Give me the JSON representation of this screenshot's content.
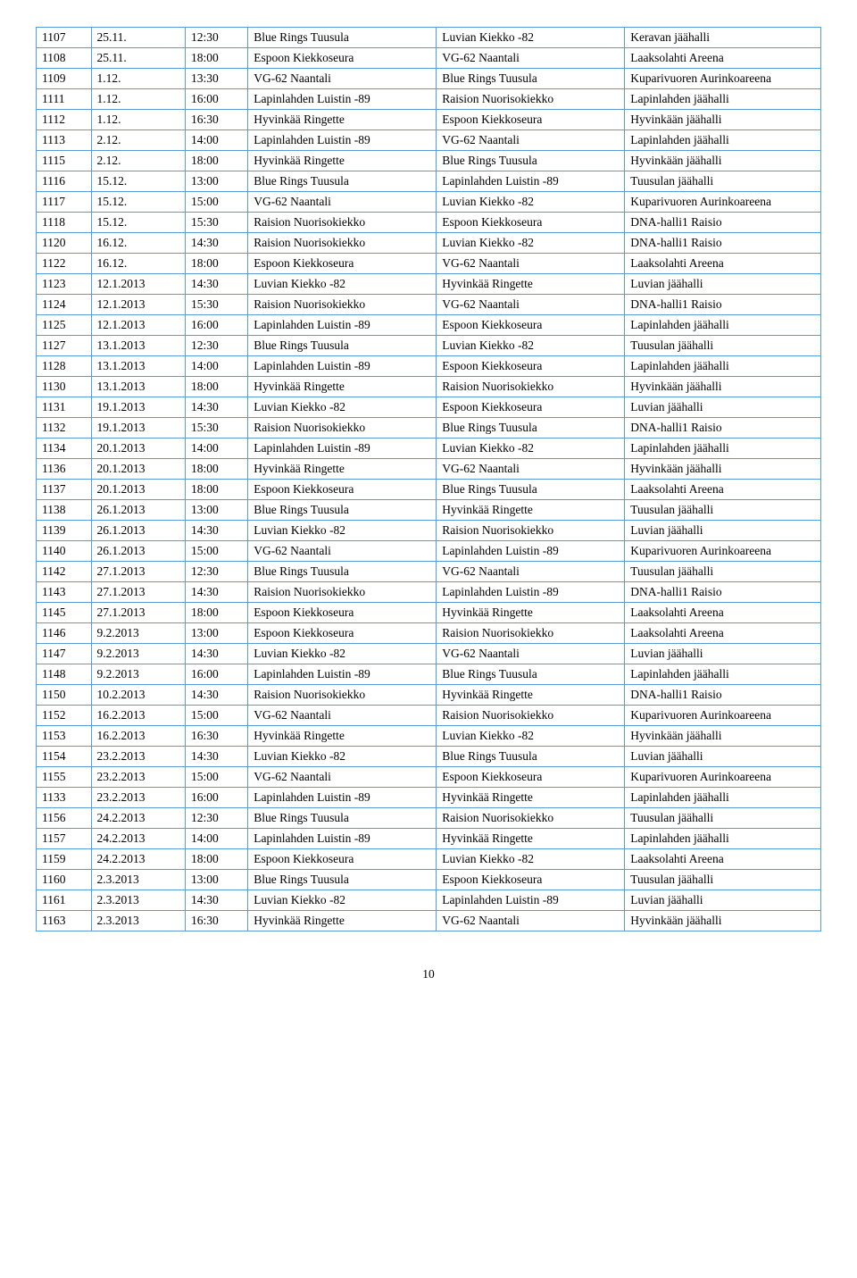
{
  "page_number": "10",
  "table": {
    "rows": [
      [
        "1107",
        "25.11.",
        "12:30",
        "Blue Rings Tuusula",
        "Luvian Kiekko -82",
        "Keravan jäähalli"
      ],
      [
        "1108",
        "25.11.",
        "18:00",
        "Espoon Kiekkoseura",
        "VG-62 Naantali",
        "Laaksolahti Areena"
      ],
      [
        "1109",
        "1.12.",
        "13:30",
        "VG-62 Naantali",
        "Blue Rings Tuusula",
        "Kuparivuoren Aurinkoareena"
      ],
      [
        "1111",
        "1.12.",
        "16:00",
        "Lapinlahden Luistin -89",
        "Raision Nuorisokiekko",
        "Lapinlahden jäähalli"
      ],
      [
        "1112",
        "1.12.",
        "16:30",
        "Hyvinkää Ringette",
        "Espoon Kiekkoseura",
        "Hyvinkään jäähalli"
      ],
      [
        "1113",
        "2.12.",
        "14:00",
        "Lapinlahden Luistin -89",
        "VG-62 Naantali",
        "Lapinlahden jäähalli"
      ],
      [
        "1115",
        "2.12.",
        "18:00",
        "Hyvinkää Ringette",
        "Blue Rings Tuusula",
        "Hyvinkään jäähalli"
      ],
      [
        "1116",
        "15.12.",
        "13:00",
        "Blue Rings Tuusula",
        "Lapinlahden Luistin -89",
        "Tuusulan jäähalli"
      ],
      [
        "1117",
        "15.12.",
        "15:00",
        "VG-62 Naantali",
        "Luvian Kiekko -82",
        "Kuparivuoren Aurinkoareena"
      ],
      [
        "1118",
        "15.12.",
        "15:30",
        "Raision Nuorisokiekko",
        "Espoon Kiekkoseura",
        "DNA-halli1 Raisio"
      ],
      [
        "1120",
        "16.12.",
        "14:30",
        "Raision Nuorisokiekko",
        "Luvian Kiekko -82",
        "DNA-halli1 Raisio"
      ],
      [
        "1122",
        "16.12.",
        "18:00",
        "Espoon Kiekkoseura",
        "VG-62 Naantali",
        "Laaksolahti Areena"
      ],
      [
        "1123",
        "12.1.2013",
        "14:30",
        "Luvian Kiekko -82",
        "Hyvinkää Ringette",
        "Luvian jäähalli"
      ],
      [
        "1124",
        "12.1.2013",
        "15:30",
        "Raision Nuorisokiekko",
        "VG-62 Naantali",
        "DNA-halli1 Raisio"
      ],
      [
        "1125",
        "12.1.2013",
        "16:00",
        "Lapinlahden Luistin -89",
        "Espoon Kiekkoseura",
        "Lapinlahden jäähalli"
      ],
      [
        "1127",
        "13.1.2013",
        "12:30",
        "Blue Rings Tuusula",
        "Luvian Kiekko -82",
        "Tuusulan jäähalli"
      ],
      [
        "1128",
        "13.1.2013",
        "14:00",
        "Lapinlahden Luistin -89",
        "Espoon Kiekkoseura",
        "Lapinlahden jäähalli"
      ],
      [
        "1130",
        "13.1.2013",
        "18:00",
        "Hyvinkää Ringette",
        "Raision Nuorisokiekko",
        "Hyvinkään jäähalli"
      ],
      [
        "1131",
        "19.1.2013",
        "14:30",
        "Luvian Kiekko -82",
        "Espoon Kiekkoseura",
        "Luvian jäähalli"
      ],
      [
        "1132",
        "19.1.2013",
        "15:30",
        "Raision Nuorisokiekko",
        "Blue Rings Tuusula",
        "DNA-halli1 Raisio"
      ],
      [
        "1134",
        "20.1.2013",
        "14:00",
        "Lapinlahden Luistin -89",
        "Luvian Kiekko -82",
        "Lapinlahden jäähalli"
      ],
      [
        "1136",
        "20.1.2013",
        "18:00",
        "Hyvinkää Ringette",
        "VG-62 Naantali",
        "Hyvinkään jäähalli"
      ],
      [
        "1137",
        "20.1.2013",
        "18:00",
        "Espoon Kiekkoseura",
        "Blue Rings Tuusula",
        "Laaksolahti Areena"
      ],
      [
        "1138",
        "26.1.2013",
        "13:00",
        "Blue Rings Tuusula",
        "Hyvinkää Ringette",
        "Tuusulan jäähalli"
      ],
      [
        "1139",
        "26.1.2013",
        "14:30",
        "Luvian Kiekko -82",
        "Raision Nuorisokiekko",
        "Luvian jäähalli"
      ],
      [
        "1140",
        "26.1.2013",
        "15:00",
        "VG-62 Naantali",
        "Lapinlahden Luistin -89",
        "Kuparivuoren Aurinkoareena"
      ],
      [
        "1142",
        "27.1.2013",
        "12:30",
        "Blue Rings Tuusula",
        "VG-62 Naantali",
        "Tuusulan jäähalli"
      ],
      [
        "1143",
        "27.1.2013",
        "14:30",
        "Raision Nuorisokiekko",
        "Lapinlahden Luistin -89",
        "DNA-halli1 Raisio"
      ],
      [
        "1145",
        "27.1.2013",
        "18:00",
        "Espoon Kiekkoseura",
        "Hyvinkää Ringette",
        "Laaksolahti Areena"
      ],
      [
        "1146",
        "9.2.2013",
        "13:00",
        "Espoon Kiekkoseura",
        "Raision Nuorisokiekko",
        "Laaksolahti Areena"
      ],
      [
        "1147",
        "9.2.2013",
        "14:30",
        "Luvian Kiekko -82",
        "VG-62 Naantali",
        "Luvian jäähalli"
      ],
      [
        "1148",
        "9.2.2013",
        "16:00",
        "Lapinlahden Luistin -89",
        "Blue Rings Tuusula",
        "Lapinlahden jäähalli"
      ],
      [
        "1150",
        "10.2.2013",
        "14:30",
        "Raision Nuorisokiekko",
        "Hyvinkää Ringette",
        "DNA-halli1 Raisio"
      ],
      [
        "1152",
        "16.2.2013",
        "15:00",
        "VG-62 Naantali",
        "Raision Nuorisokiekko",
        "Kuparivuoren Aurinkoareena"
      ],
      [
        "1153",
        "16.2.2013",
        "16:30",
        "Hyvinkää Ringette",
        "Luvian Kiekko -82",
        "Hyvinkään jäähalli"
      ],
      [
        "1154",
        "23.2.2013",
        "14:30",
        "Luvian Kiekko -82",
        "Blue Rings Tuusula",
        "Luvian jäähalli"
      ],
      [
        "1155",
        "23.2.2013",
        "15:00",
        "VG-62 Naantali",
        "Espoon Kiekkoseura",
        "Kuparivuoren Aurinkoareena"
      ],
      [
        "1133",
        "23.2.2013",
        "16:00",
        "Lapinlahden Luistin -89",
        "Hyvinkää Ringette",
        "Lapinlahden jäähalli"
      ],
      [
        "1156",
        "24.2.2013",
        "12:30",
        "Blue Rings Tuusula",
        "Raision Nuorisokiekko",
        "Tuusulan jäähalli"
      ],
      [
        "1157",
        "24.2.2013",
        "14:00",
        "Lapinlahden Luistin -89",
        "Hyvinkää Ringette",
        "Lapinlahden jäähalli"
      ],
      [
        "1159",
        "24.2.2013",
        "18:00",
        "Espoon Kiekkoseura",
        "Luvian Kiekko -82",
        "Laaksolahti Areena"
      ],
      [
        "1160",
        "2.3.2013",
        "13:00",
        "Blue Rings Tuusula",
        "Espoon Kiekkoseura",
        "Tuusulan jäähalli"
      ],
      [
        "1161",
        "2.3.2013",
        "14:30",
        "Luvian Kiekko -82",
        "Lapinlahden Luistin -89",
        "Luvian jäähalli"
      ],
      [
        "1163",
        "2.3.2013",
        "16:30",
        "Hyvinkää Ringette",
        "VG-62 Naantali",
        "Hyvinkään jäähalli"
      ]
    ]
  }
}
